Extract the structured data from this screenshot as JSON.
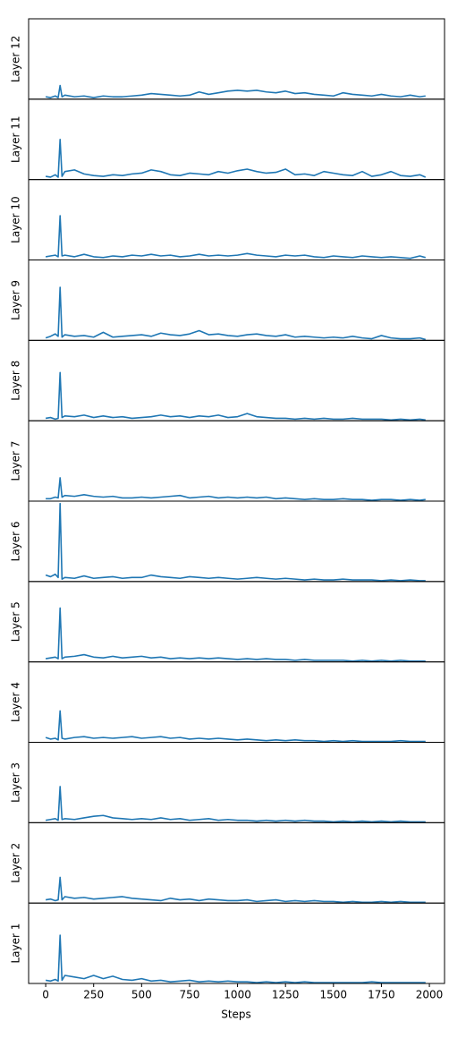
{
  "chart_data": {
    "type": "line",
    "panels": "stacked",
    "xlabel": "Steps",
    "x": [
      0,
      25,
      50,
      65,
      75,
      85,
      100,
      150,
      200,
      250,
      300,
      350,
      400,
      450,
      500,
      550,
      600,
      650,
      700,
      750,
      800,
      850,
      900,
      950,
      1000,
      1050,
      1100,
      1150,
      1200,
      1250,
      1300,
      1350,
      1400,
      1450,
      1500,
      1550,
      1600,
      1650,
      1700,
      1750,
      1800,
      1850,
      1900,
      1950,
      1980
    ],
    "xlim": [
      -89,
      2079
    ],
    "xticks": [
      0,
      250,
      500,
      750,
      1000,
      1250,
      1500,
      1750,
      2000
    ],
    "ylim": [
      0,
      1
    ],
    "series": [
      {
        "name": "Layer 12",
        "color": "#1f77b4",
        "values": [
          0.03,
          0.02,
          0.04,
          0.02,
          0.17,
          0.03,
          0.05,
          0.03,
          0.04,
          0.02,
          0.04,
          0.03,
          0.03,
          0.04,
          0.05,
          0.07,
          0.06,
          0.05,
          0.04,
          0.05,
          0.09,
          0.06,
          0.08,
          0.1,
          0.11,
          0.1,
          0.11,
          0.09,
          0.08,
          0.1,
          0.07,
          0.08,
          0.06,
          0.05,
          0.04,
          0.08,
          0.06,
          0.05,
          0.04,
          0.06,
          0.04,
          0.03,
          0.05,
          0.03,
          0.04
        ]
      },
      {
        "name": "Layer 11",
        "color": "#1f77b4",
        "values": [
          0.04,
          0.03,
          0.06,
          0.03,
          0.5,
          0.04,
          0.1,
          0.12,
          0.07,
          0.05,
          0.04,
          0.06,
          0.05,
          0.07,
          0.08,
          0.12,
          0.1,
          0.06,
          0.05,
          0.08,
          0.07,
          0.06,
          0.1,
          0.08,
          0.11,
          0.13,
          0.1,
          0.08,
          0.09,
          0.13,
          0.06,
          0.07,
          0.05,
          0.1,
          0.08,
          0.06,
          0.05,
          0.1,
          0.04,
          0.06,
          0.1,
          0.05,
          0.04,
          0.06,
          0.03
        ]
      },
      {
        "name": "Layer 10",
        "color": "#1f77b4",
        "values": [
          0.04,
          0.05,
          0.06,
          0.04,
          0.55,
          0.05,
          0.06,
          0.04,
          0.07,
          0.04,
          0.03,
          0.05,
          0.04,
          0.06,
          0.05,
          0.07,
          0.05,
          0.06,
          0.04,
          0.05,
          0.07,
          0.05,
          0.06,
          0.05,
          0.06,
          0.08,
          0.06,
          0.05,
          0.04,
          0.06,
          0.05,
          0.06,
          0.04,
          0.03,
          0.05,
          0.04,
          0.03,
          0.05,
          0.04,
          0.03,
          0.04,
          0.03,
          0.02,
          0.05,
          0.03
        ]
      },
      {
        "name": "Layer 9",
        "color": "#1f77b4",
        "values": [
          0.03,
          0.05,
          0.08,
          0.05,
          0.66,
          0.04,
          0.07,
          0.05,
          0.06,
          0.04,
          0.1,
          0.04,
          0.05,
          0.06,
          0.07,
          0.05,
          0.09,
          0.07,
          0.06,
          0.08,
          0.12,
          0.07,
          0.08,
          0.06,
          0.05,
          0.07,
          0.08,
          0.06,
          0.05,
          0.07,
          0.04,
          0.05,
          0.04,
          0.03,
          0.04,
          0.03,
          0.05,
          0.03,
          0.02,
          0.06,
          0.03,
          0.02,
          0.02,
          0.03,
          0.01
        ]
      },
      {
        "name": "Layer 8",
        "color": "#1f77b4",
        "values": [
          0.03,
          0.04,
          0.02,
          0.03,
          0.6,
          0.04,
          0.06,
          0.05,
          0.07,
          0.04,
          0.06,
          0.04,
          0.05,
          0.03,
          0.04,
          0.05,
          0.07,
          0.05,
          0.06,
          0.04,
          0.06,
          0.05,
          0.07,
          0.04,
          0.05,
          0.09,
          0.05,
          0.04,
          0.03,
          0.03,
          0.02,
          0.03,
          0.02,
          0.03,
          0.02,
          0.02,
          0.03,
          0.02,
          0.02,
          0.02,
          0.01,
          0.02,
          0.01,
          0.02,
          0.01
        ]
      },
      {
        "name": "Layer 7",
        "color": "#1f77b4",
        "values": [
          0.03,
          0.03,
          0.05,
          0.04,
          0.29,
          0.05,
          0.07,
          0.06,
          0.08,
          0.06,
          0.05,
          0.06,
          0.04,
          0.04,
          0.05,
          0.04,
          0.05,
          0.06,
          0.07,
          0.04,
          0.05,
          0.06,
          0.04,
          0.05,
          0.04,
          0.05,
          0.04,
          0.05,
          0.03,
          0.04,
          0.03,
          0.02,
          0.03,
          0.02,
          0.02,
          0.03,
          0.02,
          0.02,
          0.01,
          0.02,
          0.02,
          0.01,
          0.02,
          0.01,
          0.02
        ]
      },
      {
        "name": "Layer 6",
        "color": "#1f77b4",
        "values": [
          0.08,
          0.06,
          0.09,
          0.05,
          0.97,
          0.03,
          0.05,
          0.04,
          0.07,
          0.04,
          0.05,
          0.06,
          0.04,
          0.05,
          0.05,
          0.08,
          0.06,
          0.05,
          0.04,
          0.06,
          0.05,
          0.04,
          0.05,
          0.04,
          0.03,
          0.04,
          0.05,
          0.04,
          0.03,
          0.04,
          0.03,
          0.02,
          0.03,
          0.02,
          0.02,
          0.03,
          0.02,
          0.02,
          0.02,
          0.01,
          0.02,
          0.01,
          0.02,
          0.01,
          0.01
        ]
      },
      {
        "name": "Layer 5",
        "color": "#1f77b4",
        "values": [
          0.04,
          0.05,
          0.06,
          0.04,
          0.67,
          0.04,
          0.06,
          0.07,
          0.09,
          0.06,
          0.05,
          0.07,
          0.05,
          0.06,
          0.07,
          0.05,
          0.06,
          0.04,
          0.05,
          0.04,
          0.05,
          0.04,
          0.05,
          0.04,
          0.03,
          0.04,
          0.03,
          0.04,
          0.03,
          0.03,
          0.02,
          0.03,
          0.02,
          0.02,
          0.02,
          0.02,
          0.01,
          0.02,
          0.01,
          0.02,
          0.01,
          0.02,
          0.01,
          0.01,
          0.01
        ]
      },
      {
        "name": "Layer 4",
        "color": "#1f77b4",
        "values": [
          0.06,
          0.04,
          0.05,
          0.03,
          0.39,
          0.05,
          0.04,
          0.06,
          0.07,
          0.05,
          0.06,
          0.05,
          0.06,
          0.07,
          0.05,
          0.06,
          0.07,
          0.05,
          0.06,
          0.04,
          0.05,
          0.04,
          0.05,
          0.04,
          0.03,
          0.04,
          0.03,
          0.02,
          0.03,
          0.02,
          0.03,
          0.02,
          0.02,
          0.01,
          0.02,
          0.01,
          0.02,
          0.01,
          0.01,
          0.01,
          0.01,
          0.02,
          0.01,
          0.01,
          0.01
        ]
      },
      {
        "name": "Layer 3",
        "color": "#1f77b4",
        "values": [
          0.03,
          0.04,
          0.05,
          0.03,
          0.45,
          0.04,
          0.05,
          0.04,
          0.06,
          0.08,
          0.09,
          0.06,
          0.05,
          0.04,
          0.05,
          0.04,
          0.06,
          0.04,
          0.05,
          0.03,
          0.04,
          0.05,
          0.03,
          0.04,
          0.03,
          0.03,
          0.02,
          0.03,
          0.02,
          0.03,
          0.02,
          0.03,
          0.02,
          0.02,
          0.01,
          0.02,
          0.01,
          0.02,
          0.01,
          0.02,
          0.01,
          0.02,
          0.01,
          0.01,
          0.01
        ]
      },
      {
        "name": "Layer 2",
        "color": "#1f77b4",
        "values": [
          0.04,
          0.05,
          0.03,
          0.04,
          0.32,
          0.04,
          0.08,
          0.06,
          0.07,
          0.05,
          0.06,
          0.07,
          0.08,
          0.06,
          0.05,
          0.04,
          0.03,
          0.06,
          0.04,
          0.05,
          0.03,
          0.05,
          0.04,
          0.03,
          0.03,
          0.04,
          0.02,
          0.03,
          0.04,
          0.02,
          0.03,
          0.02,
          0.03,
          0.02,
          0.02,
          0.01,
          0.02,
          0.01,
          0.01,
          0.02,
          0.01,
          0.02,
          0.01,
          0.01,
          0.01
        ]
      },
      {
        "name": "Layer 1",
        "color": "#1f77b4",
        "values": [
          0.04,
          0.03,
          0.05,
          0.03,
          0.6,
          0.04,
          0.1,
          0.08,
          0.06,
          0.1,
          0.06,
          0.09,
          0.05,
          0.04,
          0.06,
          0.03,
          0.04,
          0.02,
          0.03,
          0.04,
          0.02,
          0.03,
          0.02,
          0.03,
          0.02,
          0.02,
          0.01,
          0.02,
          0.01,
          0.02,
          0.01,
          0.02,
          0.01,
          0.01,
          0.01,
          0.01,
          0.01,
          0.01,
          0.02,
          0.01,
          0.01,
          0.01,
          0.01,
          0.01,
          0.01
        ]
      }
    ]
  }
}
